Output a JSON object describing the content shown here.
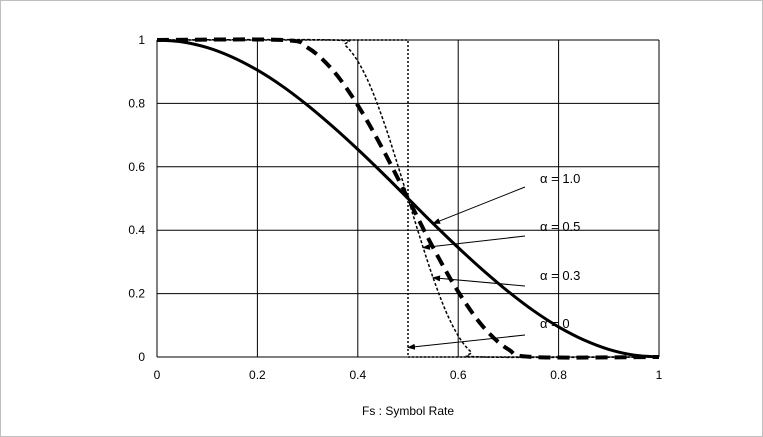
{
  "chart_data": {
    "type": "line",
    "title": "",
    "xlabel": "Fs : Symbol Rate",
    "ylabel": "",
    "xlim": [
      0,
      1
    ],
    "ylim": [
      0,
      1
    ],
    "grid": true,
    "x_ticks": [
      "0",
      "0.2",
      "0.4",
      "0.6",
      "0.8",
      "1"
    ],
    "y_ticks": [
      "0",
      "0.2",
      "0.4",
      "0.6",
      "0.8",
      "1"
    ],
    "series": [
      {
        "name": "α = 1.0",
        "x": [
          0,
          0.05,
          0.1,
          0.15,
          0.2,
          0.25,
          0.3,
          0.35,
          0.4,
          0.45,
          0.5,
          0.55,
          0.6,
          0.65,
          0.7,
          0.75,
          0.8,
          0.85,
          0.9,
          0.95,
          1
        ],
        "values": [
          1,
          0.994,
          0.976,
          0.946,
          0.905,
          0.854,
          0.794,
          0.727,
          0.655,
          0.579,
          0.5,
          0.421,
          0.345,
          0.273,
          0.206,
          0.146,
          0.095,
          0.054,
          0.024,
          0.006,
          0
        ]
      },
      {
        "name": "α = 0.5",
        "x": [
          0,
          0.25,
          0.3,
          0.35,
          0.4,
          0.45,
          0.5,
          0.55,
          0.6,
          0.65,
          0.7,
          0.75,
          1
        ],
        "values": [
          1,
          1,
          0.976,
          0.905,
          0.794,
          0.655,
          0.5,
          0.345,
          0.206,
          0.095,
          0.024,
          0,
          0
        ]
      },
      {
        "name": "α = 0.3",
        "x": [
          0,
          0.35,
          0.375,
          0.4,
          0.425,
          0.45,
          0.475,
          0.5,
          0.525,
          0.55,
          0.575,
          0.6,
          0.625,
          0.65,
          1
        ],
        "values": [
          1,
          1,
          0.983,
          0.933,
          0.854,
          0.75,
          0.629,
          0.5,
          0.371,
          0.25,
          0.146,
          0.067,
          0.017,
          0,
          0
        ]
      },
      {
        "name": "α = 0",
        "x": [
          0,
          0.5,
          0.5,
          1
        ],
        "values": [
          1,
          1,
          0,
          0
        ]
      }
    ],
    "annotations": [
      {
        "text": "α = 1.0",
        "target": [
          0.55,
          0.421
        ]
      },
      {
        "text": "α = 0.5",
        "target": [
          0.53,
          0.345
        ]
      },
      {
        "text": "α = 0.3",
        "target": [
          0.55,
          0.25
        ]
      },
      {
        "text": "α = 0",
        "target": [
          0.5,
          0.03
        ]
      }
    ]
  }
}
